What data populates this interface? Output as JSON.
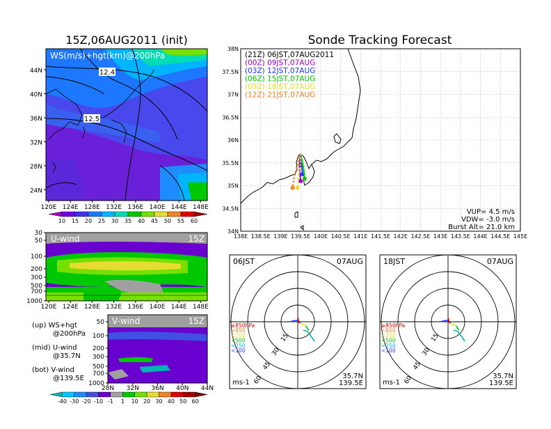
{
  "left": {
    "title": "15Z,06AUG2011 (init)",
    "ws_map": {
      "label": "WS(m/s)+hgt(km)@200hPa",
      "lat_ticks": [
        "44N",
        "40N",
        "36N",
        "32N",
        "28N",
        "24N"
      ],
      "lon_ticks": [
        "120E",
        "124E",
        "128E",
        "132E",
        "136E",
        "140E",
        "144E",
        "148E"
      ],
      "contour_labels": [
        "12.4",
        "12.5"
      ],
      "colorbar_ticks": [
        "10",
        "15",
        "20",
        "25",
        "30",
        "35",
        "40",
        "45",
        "50",
        "55",
        "60"
      ],
      "colorbar_colors": [
        "#a000c8",
        "#7000e0",
        "#4030f0",
        "#1e78ff",
        "#00b4ff",
        "#00dcb4",
        "#00c800",
        "#78e000",
        "#e6dc32",
        "#f08228",
        "#e00000",
        "#a00000"
      ]
    },
    "u_wind": {
      "label": "U-wind",
      "time": "15Z",
      "p_ticks": [
        "30",
        "50",
        "100",
        "200",
        "300",
        "500",
        "700",
        "1000"
      ],
      "lon_ticks": [
        "120E",
        "124E",
        "128E",
        "132E",
        "136E",
        "140E",
        "144E",
        "148E"
      ]
    },
    "v_wind": {
      "label": "V-wind",
      "time": "15Z",
      "p_ticks": [
        "50",
        "100",
        "200",
        "300",
        "500",
        "700",
        "1000"
      ],
      "lat_ticks": [
        "28N",
        "32N",
        "36N",
        "40N",
        "44N"
      ]
    },
    "legend_lines": [
      {
        "a": "(up) WS+hgt",
        "b": "@200hPa"
      },
      {
        "a": "(mid) U-wind",
        "b": "@35.7N"
      },
      {
        "a": "(bot) V-wind",
        "b": "@139.5E"
      }
    ],
    "wind_colorbar": {
      "ticks": [
        "-40",
        "-30",
        "-20",
        "-10",
        "-1",
        "1",
        "10",
        "20",
        "30",
        "40",
        "50",
        "60"
      ],
      "colors": [
        "#00b4b4",
        "#00c8ff",
        "#1e8cff",
        "#4050e0",
        "#6a00d0",
        "#a0a0a0",
        "#00c800",
        "#78e000",
        "#e6dc32",
        "#f08228",
        "#e00000",
        "#a00000",
        "#780000"
      ]
    }
  },
  "right": {
    "title": "Sonde Tracking Forecast",
    "lat_ticks": [
      "38N",
      "37.5N",
      "37N",
      "36.5N",
      "36N",
      "35.5N",
      "35N",
      "34.5N",
      "34N"
    ],
    "lon_ticks": [
      "138E",
      "138.5E",
      "139E",
      "139.5E",
      "140E",
      "140.5E",
      "141E",
      "141.5E",
      "142E",
      "142.5E",
      "143E",
      "143.5E",
      "144E",
      "144.5E",
      "145E"
    ],
    "legend": [
      {
        "text": "(21Z) 06JST,07AUG2011",
        "color": "#000000"
      },
      {
        "text": "(00Z) 09JST,07AUG",
        "color": "#a000c8"
      },
      {
        "text": "(03Z) 12JST,07AUG",
        "color": "#1e3cff"
      },
      {
        "text": "(06Z) 15JST,07AUG",
        "color": "#00c800"
      },
      {
        "text": "(09Z) 18JST,07AUG",
        "color": "#e6dc32"
      },
      {
        "text": "(12Z) 21JST,07AUG",
        "color": "#f08228"
      }
    ],
    "info": [
      "VUP= 4.5 m/s",
      "VDW= -3.0 m/s",
      "Burst Alt= 21.0 km"
    ]
  },
  "polars": [
    {
      "time": "06JST",
      "date": "07AUG",
      "ring_labels": [
        "15",
        "30",
        "45",
        "60"
      ],
      "levels": [
        {
          "text": "≥850hPa",
          "color": "#e00000"
        },
        {
          "text": "<850",
          "color": "#f08228"
        },
        {
          "text": "<700",
          "color": "#e6dc32"
        },
        {
          "text": "<500",
          "color": "#00c800"
        },
        {
          "text": "<250",
          "color": "#00b4ff"
        },
        {
          "text": "<100",
          "color": "#1e3cff"
        }
      ],
      "units": "ms-1",
      "loc": [
        "35.7N",
        "139.5E"
      ]
    },
    {
      "time": "18JST",
      "date": "07AUG",
      "ring_labels": [
        "15",
        "30",
        "45",
        "60"
      ],
      "levels": [
        {
          "text": "≥850hPa",
          "color": "#e00000"
        },
        {
          "text": "<850",
          "color": "#f08228"
        },
        {
          "text": "<700",
          "color": "#e6dc32"
        },
        {
          "text": "<500",
          "color": "#00c800"
        },
        {
          "text": "<250",
          "color": "#00b4ff"
        },
        {
          "text": "<100",
          "color": "#1e3cff"
        }
      ],
      "units": "ms-1",
      "loc": [
        "35.7N",
        "139.5E"
      ]
    }
  ],
  "chart_data": [
    {
      "type": "heatmap",
      "title": "15Z,06AUG2011 (init)",
      "panel": "WS(m/s)+hgt(km)@200hPa",
      "xlim": [
        "120E",
        "150E"
      ],
      "ylim": [
        "22N",
        "47N"
      ],
      "contour_labels": [
        12.4,
        12.5
      ]
    },
    {
      "type": "heatmap",
      "panel": "U-wind",
      "xlim": [
        "120E",
        "150E"
      ],
      "ylim": [
        1000,
        30
      ]
    },
    {
      "type": "heatmap",
      "panel": "V-wind",
      "xlim": [
        "28N",
        "44N"
      ],
      "ylim": [
        1000,
        50
      ]
    },
    {
      "type": "line",
      "title": "Sonde Tracking Forecast",
      "xlim": [
        138,
        145
      ],
      "ylim": [
        34,
        38
      ],
      "series": [
        {
          "name": "(21Z) 06JST,07AUG2011",
          "color": "#000000",
          "x": [
            139.5,
            139.49,
            139.48,
            139.5
          ],
          "y": [
            35.7,
            35.6,
            35.5,
            35.45
          ]
        },
        {
          "name": "(00Z) 09JST,07AUG",
          "color": "#a000c8",
          "x": [
            139.5,
            139.48,
            139.47,
            139.49,
            139.5
          ],
          "y": [
            35.7,
            35.55,
            35.4,
            35.2,
            35.1
          ]
        },
        {
          "name": "(03Z) 12JST,07AUG",
          "color": "#1e3cff",
          "x": [
            139.5,
            139.51,
            139.53,
            139.55
          ],
          "y": [
            35.7,
            35.55,
            35.4,
            35.25
          ]
        },
        {
          "name": "(06Z) 15JST,07AUG",
          "color": "#00c800",
          "x": [
            139.5,
            139.53,
            139.57,
            139.6
          ],
          "y": [
            35.7,
            35.55,
            35.4,
            35.15
          ]
        },
        {
          "name": "(09Z) 18JST,07AUG",
          "color": "#e6dc32",
          "x": [
            139.5,
            139.5,
            139.45,
            139.42
          ],
          "y": [
            35.7,
            35.5,
            35.2,
            34.95
          ]
        },
        {
          "name": "(12Z) 21JST,07AUG",
          "color": "#f08228",
          "x": [
            139.5,
            139.4,
            139.33,
            139.3
          ],
          "y": [
            35.7,
            35.4,
            35.15,
            34.95
          ]
        }
      ]
    }
  ]
}
